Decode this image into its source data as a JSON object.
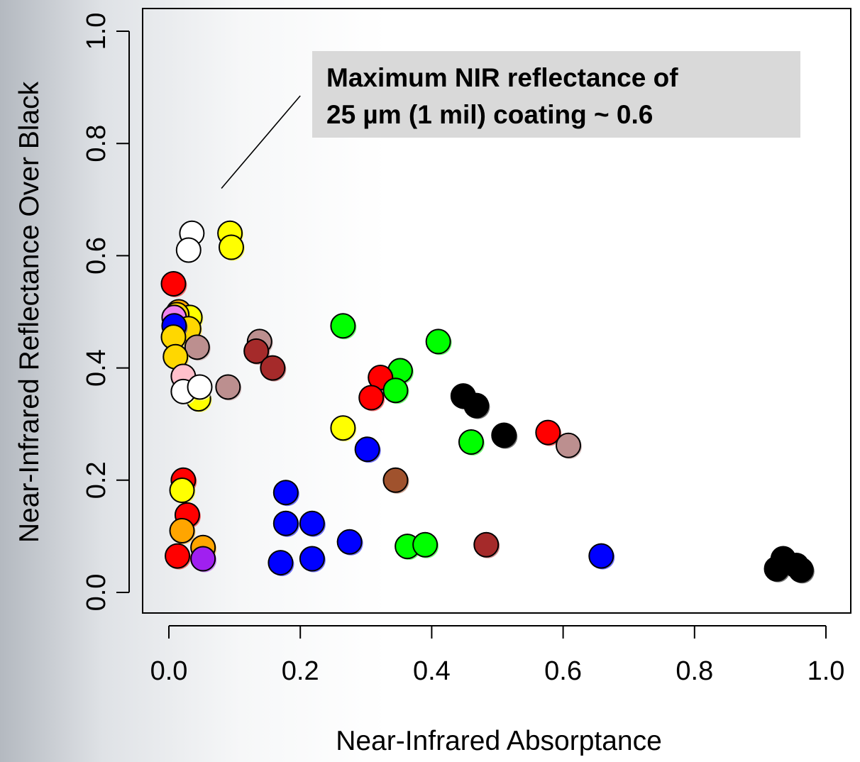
{
  "chart_data": {
    "type": "scatter",
    "title": "",
    "xlabel": "Near-Infrared Absorptance",
    "ylabel": "Near-Infrared Reflectance Over Black",
    "xlim": [
      0.0,
      1.0
    ],
    "ylim": [
      0.0,
      1.0
    ],
    "x_ticks": [
      "0.0",
      "0.2",
      "0.4",
      "0.6",
      "0.8",
      "1.0"
    ],
    "y_ticks": [
      "0.0",
      "0.2",
      "0.4",
      "0.6",
      "0.8",
      "1.0"
    ],
    "grid": false,
    "legend": "none",
    "annotation": {
      "lines": [
        "Maximum NIR reflectance of",
        "25 µm (1 mil) coating ~ 0.6"
      ],
      "pointer_from": [
        0.2,
        0.885
      ],
      "pointer_to": [
        0.08,
        0.72
      ]
    },
    "points": [
      {
        "x": 0.035,
        "y": 0.64,
        "color": "#ffffff"
      },
      {
        "x": 0.03,
        "y": 0.61,
        "color": "#ffffff"
      },
      {
        "x": 0.093,
        "y": 0.64,
        "color": "#ffff00"
      },
      {
        "x": 0.095,
        "y": 0.615,
        "color": "#ffff00"
      },
      {
        "x": 0.007,
        "y": 0.55,
        "color": "#ff0000"
      },
      {
        "x": 0.015,
        "y": 0.5,
        "color": "#ffa500"
      },
      {
        "x": 0.032,
        "y": 0.49,
        "color": "#ffff00"
      },
      {
        "x": 0.012,
        "y": 0.495,
        "color": "#ffd700"
      },
      {
        "x": 0.008,
        "y": 0.49,
        "color": "#ee82ee"
      },
      {
        "x": 0.03,
        "y": 0.47,
        "color": "#ffd700"
      },
      {
        "x": 0.008,
        "y": 0.475,
        "color": "#0000ff"
      },
      {
        "x": 0.007,
        "y": 0.455,
        "color": "#ffd700"
      },
      {
        "x": 0.043,
        "y": 0.437,
        "color": "#bc8f8f"
      },
      {
        "x": 0.01,
        "y": 0.42,
        "color": "#ffd700"
      },
      {
        "x": 0.022,
        "y": 0.385,
        "color": "#ffc0cb"
      },
      {
        "x": 0.045,
        "y": 0.345,
        "color": "#ffff00"
      },
      {
        "x": 0.022,
        "y": 0.358,
        "color": "#ffffff"
      },
      {
        "x": 0.047,
        "y": 0.366,
        "color": "#ffffff"
      },
      {
        "x": 0.09,
        "y": 0.366,
        "color": "#bc8f8f"
      },
      {
        "x": 0.138,
        "y": 0.447,
        "color": "#bc8f8f"
      },
      {
        "x": 0.133,
        "y": 0.43,
        "color": "#a52a2a"
      },
      {
        "x": 0.158,
        "y": 0.4,
        "color": "#a52a2a"
      },
      {
        "x": 0.265,
        "y": 0.475,
        "color": "#00ff00"
      },
      {
        "x": 0.41,
        "y": 0.447,
        "color": "#00ff00"
      },
      {
        "x": 0.352,
        "y": 0.395,
        "color": "#00ff00"
      },
      {
        "x": 0.322,
        "y": 0.383,
        "color": "#ff0000"
      },
      {
        "x": 0.345,
        "y": 0.36,
        "color": "#00ff00"
      },
      {
        "x": 0.308,
        "y": 0.347,
        "color": "#ff0000"
      },
      {
        "x": 0.448,
        "y": 0.35,
        "color": "#000000"
      },
      {
        "x": 0.468,
        "y": 0.333,
        "color": "#000000"
      },
      {
        "x": 0.51,
        "y": 0.28,
        "color": "#000000"
      },
      {
        "x": 0.265,
        "y": 0.293,
        "color": "#ffff00"
      },
      {
        "x": 0.46,
        "y": 0.268,
        "color": "#00ff00"
      },
      {
        "x": 0.577,
        "y": 0.285,
        "color": "#ff0000"
      },
      {
        "x": 0.608,
        "y": 0.262,
        "color": "#bc8f8f"
      },
      {
        "x": 0.302,
        "y": 0.255,
        "color": "#0000ff"
      },
      {
        "x": 0.345,
        "y": 0.2,
        "color": "#a0522d"
      },
      {
        "x": 0.178,
        "y": 0.178,
        "color": "#0000ff"
      },
      {
        "x": 0.022,
        "y": 0.2,
        "color": "#ff0000"
      },
      {
        "x": 0.02,
        "y": 0.182,
        "color": "#ffff00"
      },
      {
        "x": 0.028,
        "y": 0.138,
        "color": "#ff0000"
      },
      {
        "x": 0.178,
        "y": 0.123,
        "color": "#0000ff"
      },
      {
        "x": 0.218,
        "y": 0.123,
        "color": "#0000ff"
      },
      {
        "x": 0.02,
        "y": 0.11,
        "color": "#ffa500"
      },
      {
        "x": 0.275,
        "y": 0.09,
        "color": "#0000ff"
      },
      {
        "x": 0.363,
        "y": 0.082,
        "color": "#00ff00"
      },
      {
        "x": 0.39,
        "y": 0.085,
        "color": "#00ff00"
      },
      {
        "x": 0.483,
        "y": 0.085,
        "color": "#a52a2a"
      },
      {
        "x": 0.052,
        "y": 0.08,
        "color": "#ffa500"
      },
      {
        "x": 0.013,
        "y": 0.065,
        "color": "#ff0000"
      },
      {
        "x": 0.052,
        "y": 0.06,
        "color": "#a020f0"
      },
      {
        "x": 0.17,
        "y": 0.053,
        "color": "#0000ff"
      },
      {
        "x": 0.218,
        "y": 0.06,
        "color": "#0000ff"
      },
      {
        "x": 0.658,
        "y": 0.065,
        "color": "#0000ff"
      },
      {
        "x": 0.935,
        "y": 0.06,
        "color": "#000000"
      },
      {
        "x": 0.925,
        "y": 0.042,
        "color": "#000000"
      },
      {
        "x": 0.955,
        "y": 0.048,
        "color": "#000000"
      },
      {
        "x": 0.962,
        "y": 0.04,
        "color": "#000000"
      }
    ]
  }
}
